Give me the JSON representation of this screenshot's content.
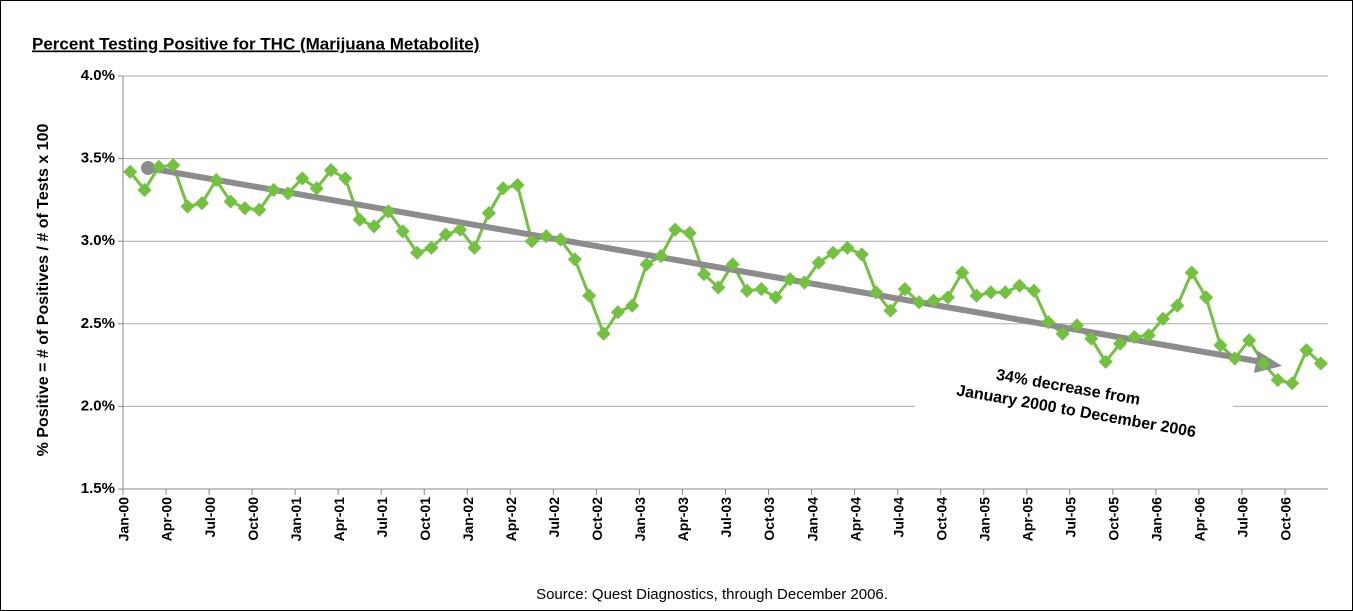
{
  "chart_data": {
    "type": "line",
    "title": "Percent Testing Positive for THC (Marijuana Metabolite)",
    "y_label": "% Positive = # of Positives / # of Tests x 100",
    "source": "Source:  Quest Diagnostics, through December 2006.",
    "annotation": [
      "34% decrease from",
      "January 2000 to December 2006"
    ],
    "color": "#74c043",
    "categories": [
      "Jan-00",
      null,
      null,
      "Apr-00",
      null,
      null,
      "Jul-00",
      null,
      null,
      "Oct-00",
      null,
      null,
      "Jan-01",
      null,
      null,
      "Apr-01",
      null,
      null,
      "Jul-01",
      null,
      null,
      "Oct-01",
      null,
      null,
      "Jan-02",
      null,
      null,
      "Apr-02",
      null,
      null,
      "Jul-02",
      null,
      null,
      "Oct-02",
      null,
      null,
      "Jan-03",
      null,
      null,
      "Apr-03",
      null,
      null,
      "Jul-03",
      null,
      null,
      "Oct-03",
      null,
      null,
      "Jan-04",
      null,
      null,
      "Apr-04",
      null,
      null,
      "Jul-04",
      null,
      null,
      "Oct-04",
      null,
      null,
      "Jan-05",
      null,
      null,
      "Apr-05",
      null,
      null,
      "Jul-05",
      null,
      null,
      "Oct-05",
      null,
      null,
      "Jan-06",
      null,
      null,
      "Apr-06",
      null,
      null,
      "Jul-06",
      null,
      null,
      "Oct-06",
      null,
      null
    ],
    "values": [
      3.42,
      3.31,
      3.45,
      3.46,
      3.21,
      3.23,
      3.37,
      3.24,
      3.2,
      3.19,
      3.31,
      3.29,
      3.38,
      3.32,
      3.43,
      3.38,
      3.13,
      3.09,
      3.18,
      3.06,
      2.93,
      2.96,
      3.04,
      3.07,
      2.96,
      3.17,
      3.32,
      3.34,
      3.0,
      3.03,
      3.01,
      2.89,
      2.67,
      2.44,
      2.57,
      2.61,
      2.86,
      2.91,
      3.07,
      3.05,
      2.8,
      2.72,
      2.86,
      2.7,
      2.71,
      2.66,
      2.77,
      2.75,
      2.87,
      2.93,
      2.96,
      2.92,
      2.69,
      2.58,
      2.71,
      2.63,
      2.64,
      2.66,
      2.81,
      2.67,
      2.69,
      2.69,
      2.73,
      2.7,
      2.51,
      2.44,
      2.49,
      2.41,
      2.27,
      2.38,
      2.42,
      2.43,
      2.53,
      2.61,
      2.81,
      2.66,
      2.37,
      2.29,
      2.4,
      2.26,
      2.16,
      2.14,
      2.34,
      2.26
    ],
    "ylim": [
      1.5,
      4.0
    ],
    "yticks": [
      {
        "value": 1.5,
        "label": "1.5%"
      },
      {
        "value": 2.0,
        "label": "2.0%"
      },
      {
        "value": 2.5,
        "label": "2.5%"
      },
      {
        "value": 3.0,
        "label": "3.0%"
      },
      {
        "value": 3.5,
        "label": "3.5%"
      },
      {
        "value": 4.0,
        "label": "4.0%"
      }
    ],
    "grid": true
  }
}
